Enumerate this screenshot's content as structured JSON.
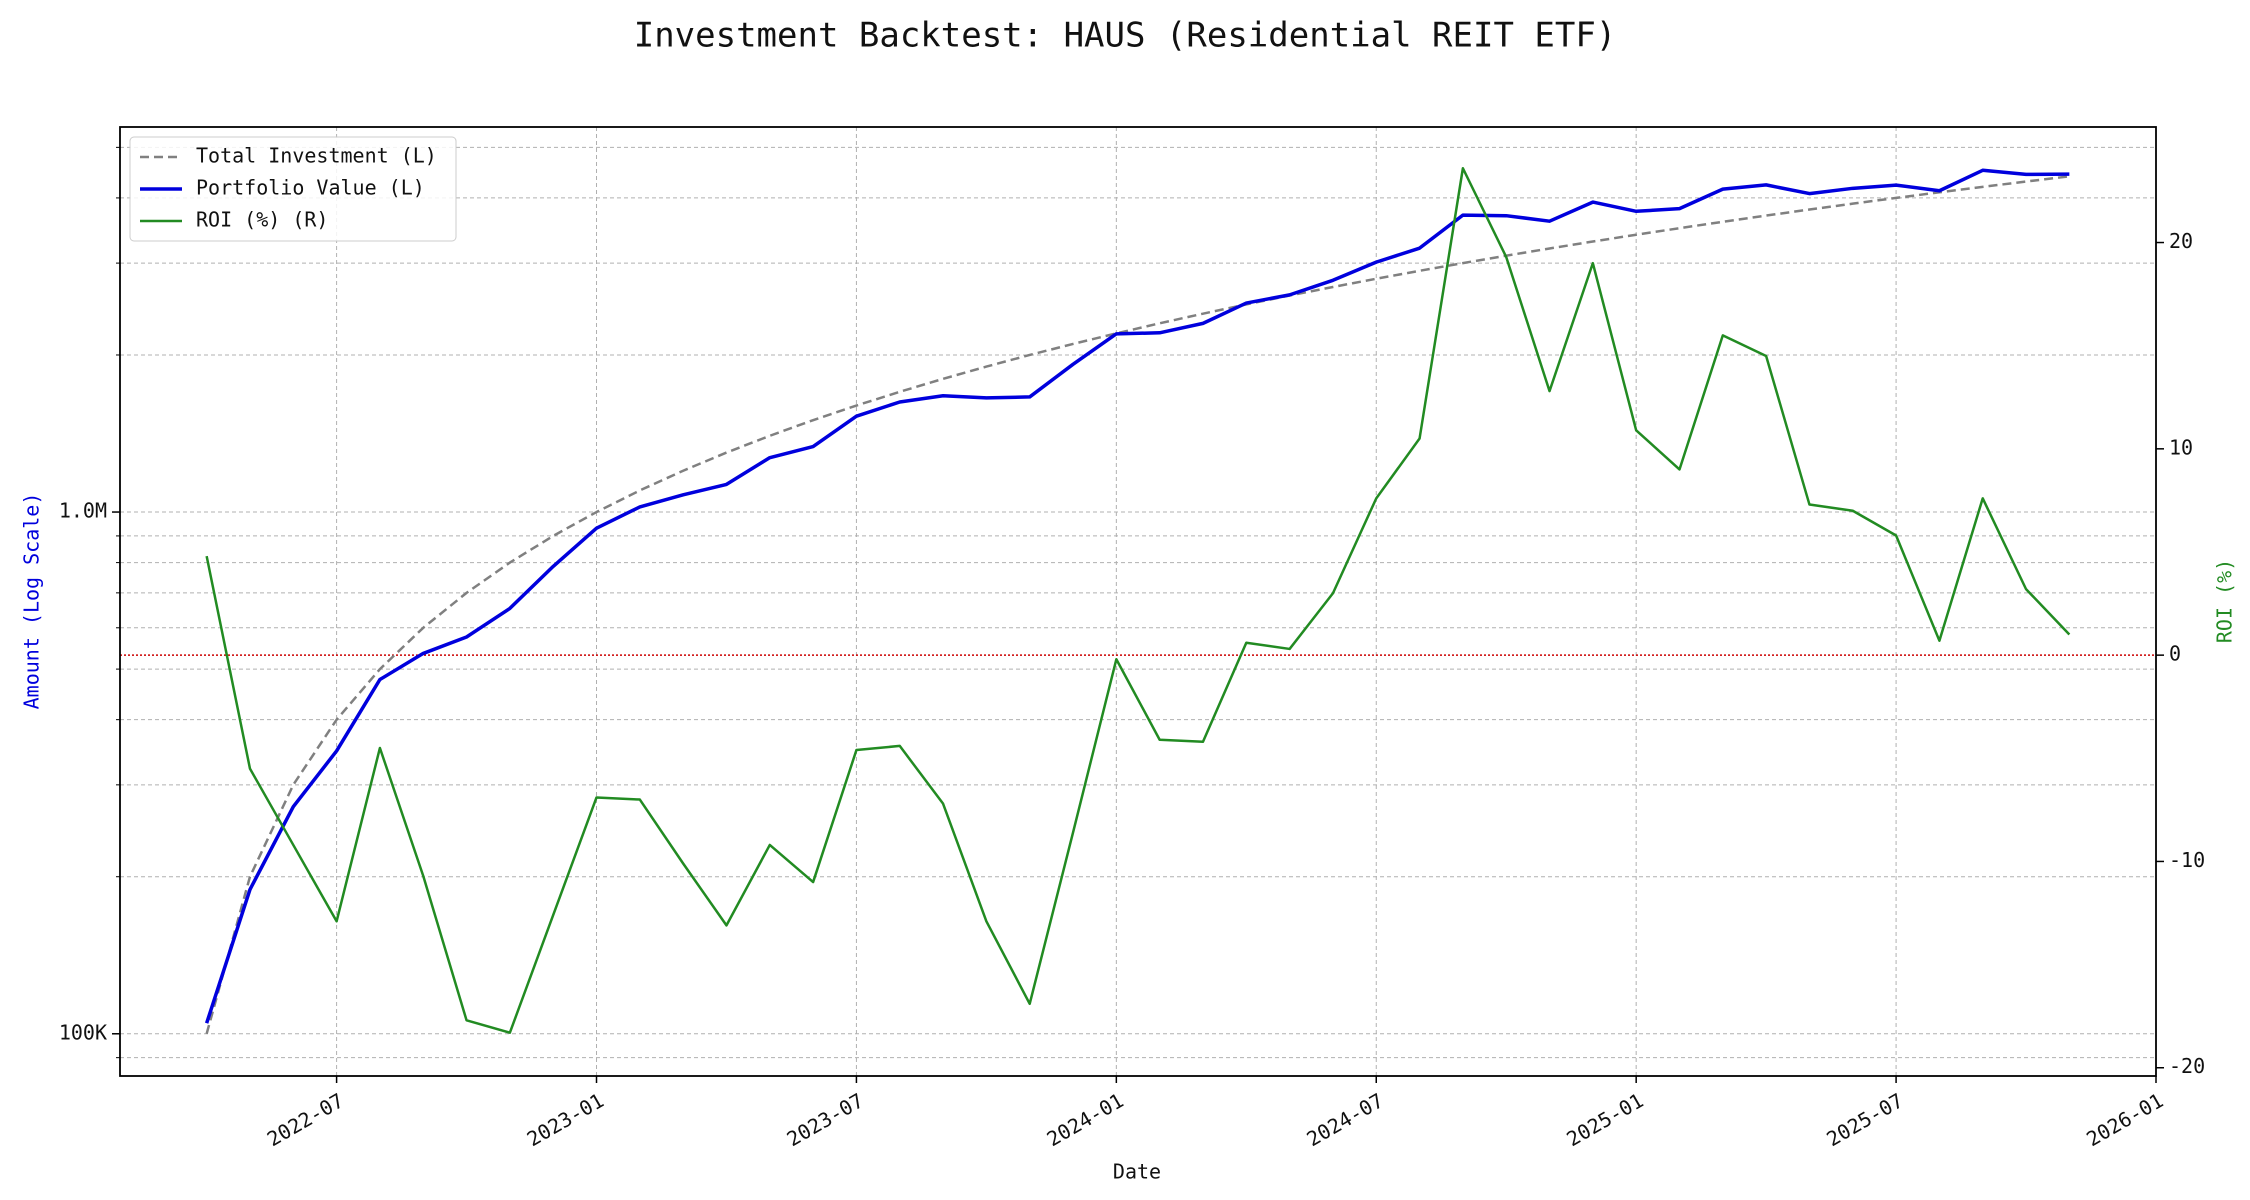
{
  "chart_data": {
    "type": "line",
    "title": "Investment Backtest: HAUS (Residential REIT ETF)",
    "xlabel": "Date",
    "ylabel": "Amount (Log Scale)",
    "y2label": "ROI (%)",
    "ylabel_color": "#0000dd",
    "y2label_color": "#228b22",
    "x": [
      "2022-04",
      "2022-05",
      "2022-06",
      "2022-07",
      "2022-08",
      "2022-09",
      "2022-10",
      "2022-11",
      "2022-12",
      "2023-01",
      "2023-02",
      "2023-03",
      "2023-04",
      "2023-05",
      "2023-06",
      "2023-07",
      "2023-08",
      "2023-09",
      "2023-10",
      "2023-11",
      "2023-12",
      "2024-01",
      "2024-02",
      "2024-03",
      "2024-04",
      "2024-05",
      "2024-06",
      "2024-07",
      "2024-08",
      "2024-09",
      "2024-10",
      "2024-11",
      "2024-12",
      "2025-01",
      "2025-02",
      "2025-03",
      "2025-04",
      "2025-05",
      "2025-06",
      "2025-07",
      "2025-08",
      "2025-09",
      "2025-10",
      "2025-11"
    ],
    "xlim": [
      "2022-02",
      "2026-01"
    ],
    "xticks": [
      "2022-07",
      "2023-01",
      "2023-07",
      "2024-01",
      "2024-07",
      "2025-01",
      "2025-07",
      "2026-01"
    ],
    "yscale": "log",
    "ylim": [
      83000,
      5470000
    ],
    "yticks": [
      {
        "value": 100000,
        "label": "100K"
      },
      {
        "value": 1000000,
        "label": "1.0M"
      }
    ],
    "yminorticks": [
      90000,
      200000,
      300000,
      400000,
      500000,
      600000,
      700000,
      800000,
      900000,
      2000000,
      3000000,
      4000000,
      5000000
    ],
    "y2lim": [
      -20.4,
      25.6
    ],
    "y2ticks": [
      -20,
      -10,
      0,
      10,
      20
    ],
    "grid": true,
    "legend": "upper left",
    "reference_line": {
      "axis": "y2",
      "value": 0,
      "color": "#cc0000"
    },
    "series": [
      {
        "name": "Total Investment (L)",
        "color": "#808080",
        "style": "dashed",
        "width": 2.5,
        "axis": "y",
        "values": [
          100000,
          200000,
          300000,
          400000,
          500000,
          600000,
          700000,
          800000,
          900000,
          1000000,
          1100000,
          1200000,
          1300000,
          1400000,
          1500000,
          1600000,
          1700000,
          1800000,
          1900000,
          2000000,
          2100000,
          2200000,
          2300000,
          2400000,
          2500000,
          2600000,
          2700000,
          2800000,
          2900000,
          3000000,
          3100000,
          3200000,
          3300000,
          3400000,
          3500000,
          3600000,
          3700000,
          3800000,
          3900000,
          4000000,
          4100000,
          4200000,
          4300000,
          4400000
        ]
      },
      {
        "name": "Portfolio Value (L)",
        "color": "#0000dd",
        "style": "solid",
        "width": 3.5,
        "axis": "y",
        "values": [
          104800,
          189000,
          272400,
          348400,
          477500,
          535800,
          576100,
          653600,
          786600,
          931000,
          1023000,
          1078800,
          1129700,
          1271200,
          1335000,
          1526400,
          1625200,
          1670400,
          1654900,
          1662000,
          1919400,
          2195600,
          2205700,
          2299200,
          2515000,
          2607800,
          2781000,
          3012800,
          3204500,
          3708000,
          3698300,
          3609600,
          3927000,
          3770600,
          3815000,
          4158000,
          4236500,
          4077400,
          4173000,
          4232000,
          4128700,
          4519200,
          4437600,
          4444000
        ]
      },
      {
        "name": "ROI (%) (R)",
        "color": "#228b22",
        "style": "solid",
        "width": 2.5,
        "axis": "y2",
        "values": [
          4.8,
          -5.5,
          -9.2,
          -12.9,
          -4.5,
          -10.7,
          -17.7,
          -18.3,
          -12.6,
          -6.9,
          -7.0,
          -10.1,
          -13.1,
          -9.2,
          -11.0,
          -4.6,
          -4.4,
          -7.2,
          -12.9,
          -16.9,
          -8.6,
          -0.2,
          -4.1,
          -4.2,
          0.6,
          0.3,
          3.0,
          7.6,
          10.5,
          23.6,
          19.3,
          12.8,
          19.0,
          10.9,
          9.0,
          15.5,
          14.5,
          7.3,
          7.0,
          5.8,
          0.7,
          7.6,
          3.2,
          1.0
        ]
      }
    ]
  }
}
